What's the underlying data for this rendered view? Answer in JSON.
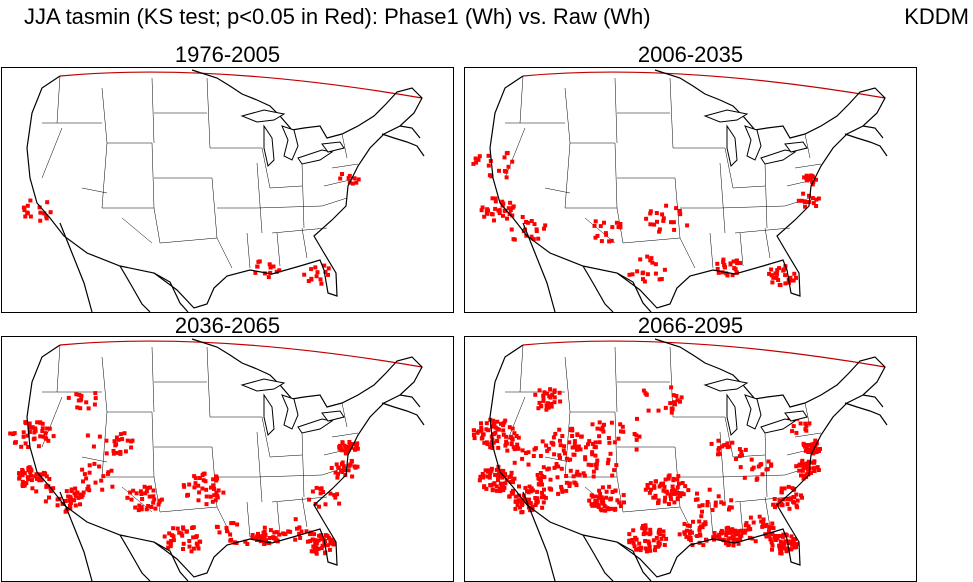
{
  "title": "JJA  tasmin (KS test; p<0.05 in Red): Phase1 (Wh) vs. Raw (Wh)",
  "model_label": "KDDM",
  "significance_color": "#ff0000",
  "panels": [
    {
      "label": "1976-2005",
      "coverage_level": 1
    },
    {
      "label": "2006-2035",
      "coverage_level": 2
    },
    {
      "label": "2036-2065",
      "coverage_level": 3
    },
    {
      "label": "2066-2095",
      "coverage_level": 4
    }
  ]
}
